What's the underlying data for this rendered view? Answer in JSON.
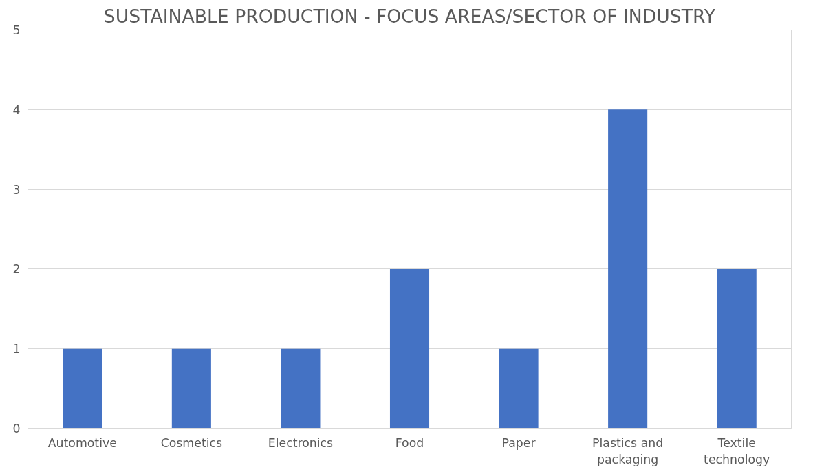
{
  "chart_data": {
    "type": "bar",
    "title": "SUSTAINABLE PRODUCTION - FOCUS AREAS/SECTOR OF INDUSTRY",
    "categories": [
      "Automotive",
      "Cosmetics",
      "Electronics",
      "Food",
      "Paper",
      "Plastics and packaging",
      "Textile technology"
    ],
    "values": [
      1,
      1,
      1,
      2,
      1,
      4,
      2
    ],
    "color": "#4472c4",
    "ylim": [
      0,
      5
    ],
    "yticks": [
      0,
      1,
      2,
      3,
      4,
      5
    ],
    "grid": "y"
  }
}
